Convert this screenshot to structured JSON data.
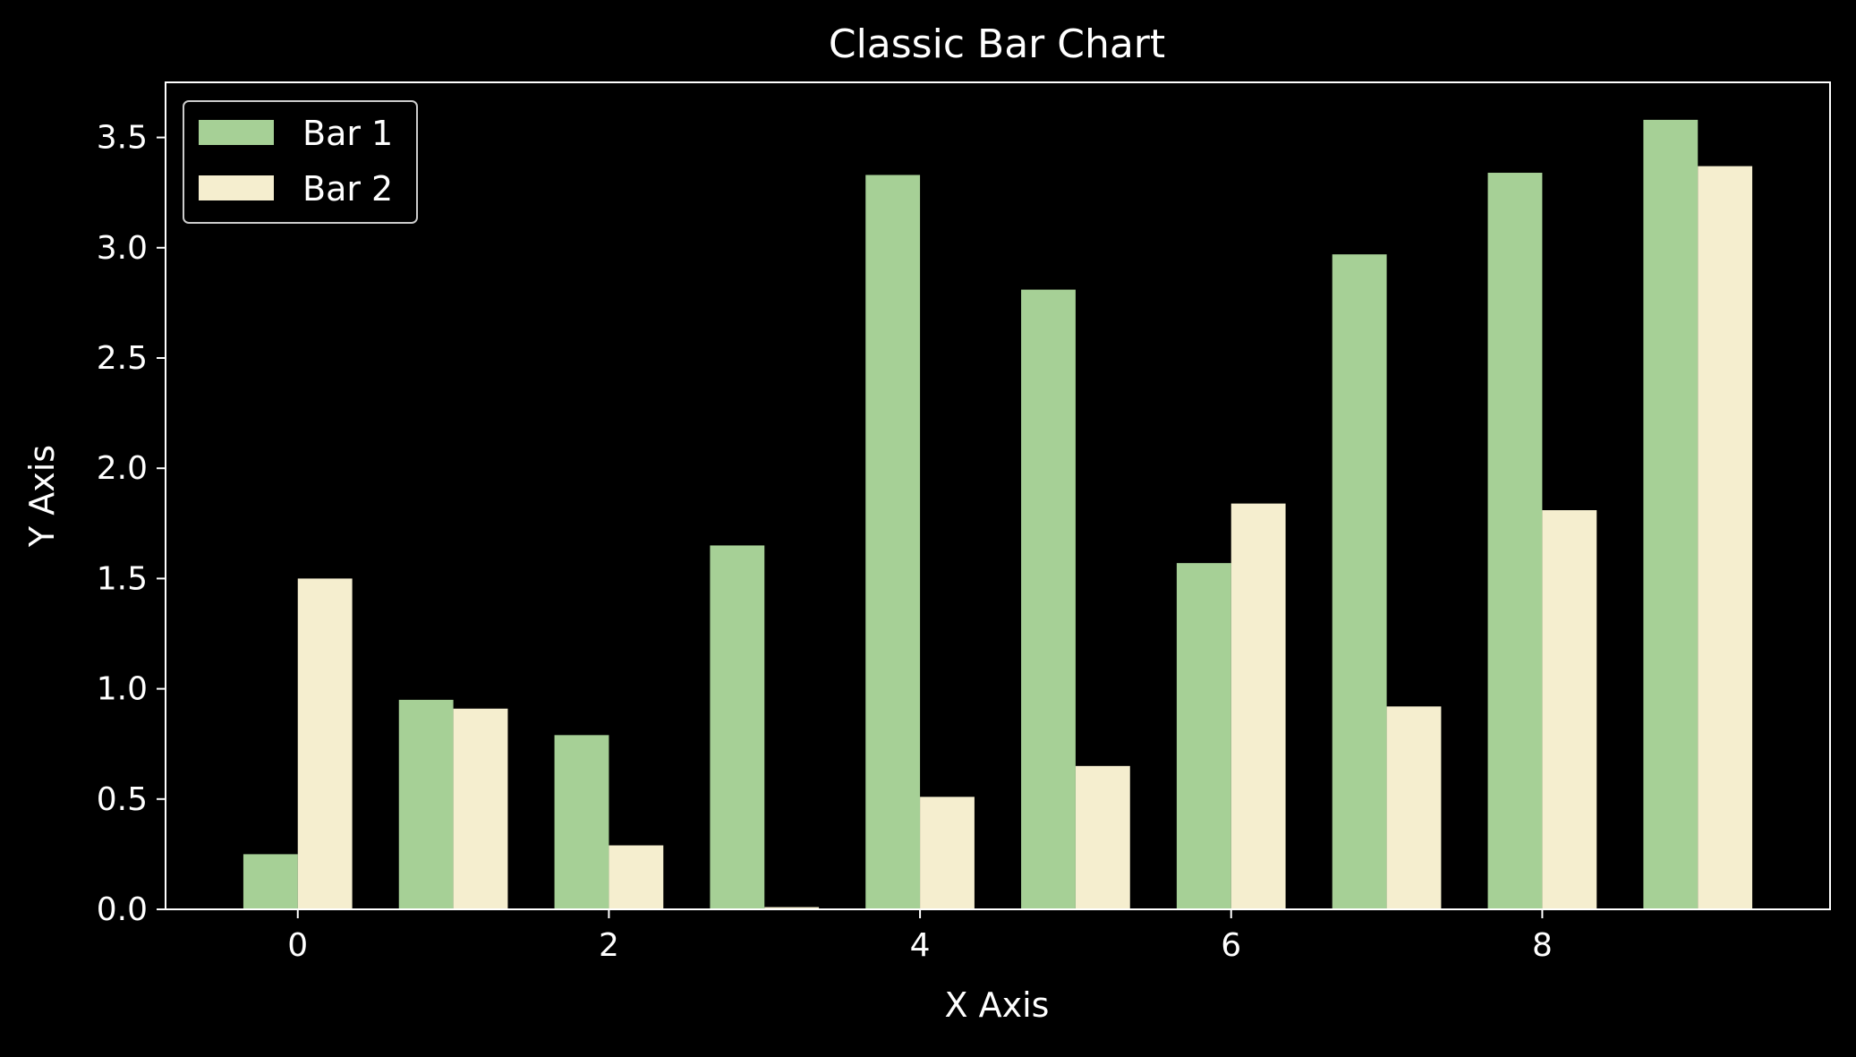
{
  "chart_data": {
    "type": "bar",
    "title": "Classic Bar Chart",
    "xlabel": "X Axis",
    "ylabel": "Y Axis",
    "x": [
      0,
      1,
      2,
      3,
      4,
      5,
      6,
      7,
      8,
      9
    ],
    "xticks": [
      "0",
      "2",
      "4",
      "6",
      "8"
    ],
    "xtick_values": [
      0,
      2,
      4,
      6,
      8
    ],
    "yticks": [
      "0.0",
      "0.5",
      "1.0",
      "1.5",
      "2.0",
      "2.5",
      "3.0",
      "3.5"
    ],
    "ytick_values": [
      0,
      0.5,
      1.0,
      1.5,
      2.0,
      2.5,
      3.0,
      3.5
    ],
    "xlim": [
      -0.85,
      9.85
    ],
    "ylim": [
      0,
      3.75
    ],
    "series": [
      {
        "name": "Bar 1",
        "color": "#a6d096",
        "values": [
          0.25,
          0.95,
          0.79,
          1.65,
          3.33,
          2.81,
          1.57,
          2.97,
          3.34,
          3.58
        ]
      },
      {
        "name": "Bar 2",
        "color": "#f5eecf",
        "values": [
          1.5,
          0.91,
          0.29,
          0.01,
          0.51,
          0.65,
          1.84,
          0.92,
          1.81,
          3.37
        ]
      }
    ],
    "grid": false,
    "legend": "top-left",
    "background": "#000000",
    "foreground": "#ffffff"
  }
}
